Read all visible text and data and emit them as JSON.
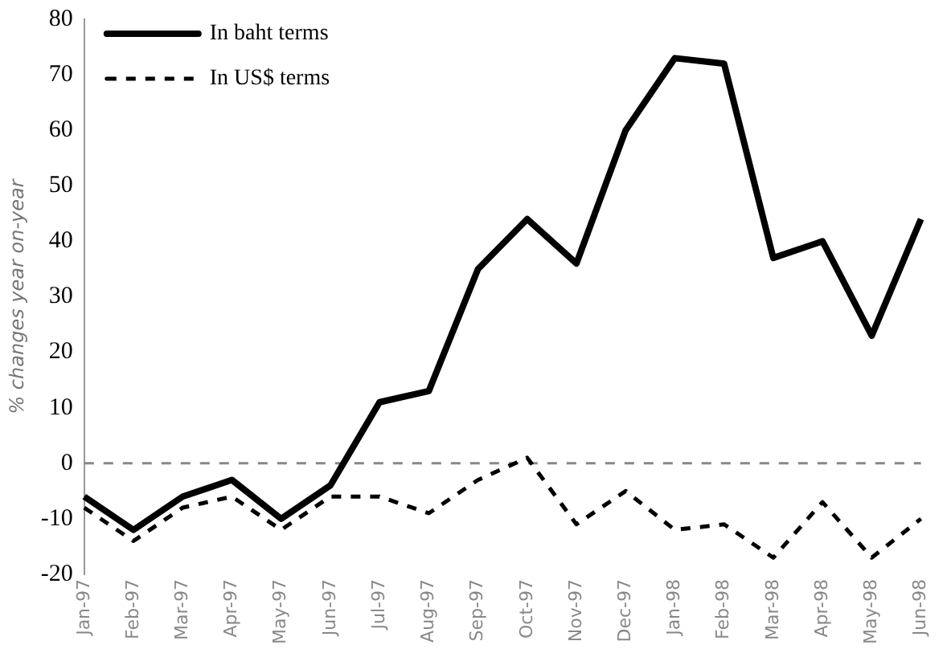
{
  "chart_data": {
    "type": "line",
    "ylabel": "% changes year on-year",
    "categories": [
      "Jan-97",
      "Feb-97",
      "Mar-97",
      "Apr-97",
      "May-97",
      "Jun-97",
      "Jul-97",
      "Aug-97",
      "Sep-97",
      "Oct-97",
      "Nov-97",
      "Dec-97",
      "Jan-98",
      "Feb-98",
      "Mar-98",
      "Apr-98",
      "May-98",
      "Jun-98"
    ],
    "series": [
      {
        "name": "In baht terms",
        "color": "#000000",
        "line_style": "solid",
        "values": [
          -6,
          -12,
          -6,
          -3,
          -10,
          -4,
          11,
          13,
          35,
          44,
          36,
          60,
          73,
          72,
          37,
          40,
          23,
          44
        ]
      },
      {
        "name": "In US$ terms",
        "color": "#000000",
        "line_style": "dashed",
        "values": [
          -8,
          -14,
          -8,
          -6,
          -12,
          -6,
          -6,
          -9,
          -3,
          1,
          -11,
          -5,
          -12,
          -11,
          -17,
          -7,
          -17,
          -10
        ]
      }
    ],
    "ylim": [
      -20,
      80
    ],
    "yticks": [
      -20,
      -10,
      0,
      10,
      20,
      30,
      40,
      50,
      60,
      70,
      80
    ],
    "ref_lines": [
      {
        "axis": "y",
        "value": 0,
        "color": "#888888",
        "line_style": "dashed"
      }
    ],
    "grid": false,
    "legend": "top left",
    "marker": "none"
  }
}
